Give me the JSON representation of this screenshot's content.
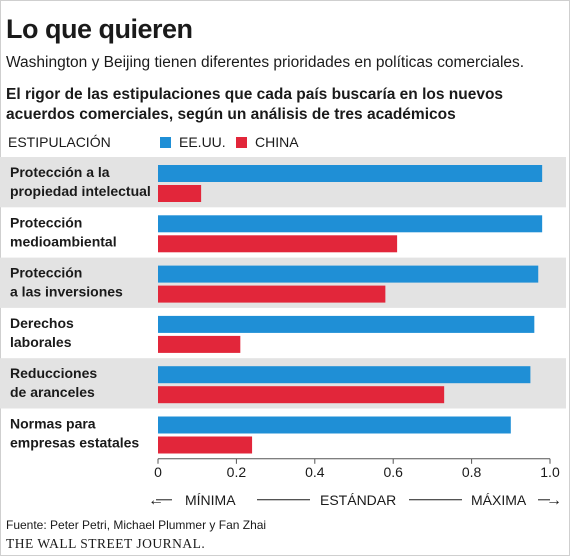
{
  "header": {
    "title": "Lo que quieren",
    "subtitle": "Washington y Beijing tienen diferentes prioridades en políticas comerciales.",
    "chart_title": "El rigor de las estipulaciones que cada país buscaría en los nuevos acuerdos comerciales, según un análisis de tres académicos"
  },
  "legend": {
    "category_header": "ESTIPULACIÓN",
    "items": [
      {
        "label": "EE.UU.",
        "color": "#1f8fd6"
      },
      {
        "label": "CHINA",
        "color": "#e2263a"
      }
    ]
  },
  "scale": {
    "left": "MÍNIMA",
    "middle": "ESTÁNDAR",
    "right": "MÁXIMA",
    "left_arrow": "←",
    "right_arrow": "→"
  },
  "footer": {
    "source": "Fuente: Peter Petri, Michael Plummer y Fan Zhai",
    "masthead": "THE WALL STREET JOURNAL."
  },
  "chart_data": {
    "type": "bar",
    "orientation": "horizontal",
    "categories": [
      [
        "Protección a la",
        "propiedad intelectual"
      ],
      [
        "Protección",
        "medioambiental"
      ],
      [
        "Protección",
        "a las inversiones"
      ],
      [
        "Derechos",
        "laborales"
      ],
      [
        "Reducciones",
        "de aranceles"
      ],
      [
        "Normas para",
        "empresas estatales"
      ]
    ],
    "series": [
      {
        "name": "EE.UU.",
        "color": "#1f8fd6",
        "values": [
          0.98,
          0.98,
          0.97,
          0.96,
          0.95,
          0.9
        ]
      },
      {
        "name": "CHINA",
        "color": "#e2263a",
        "values": [
          0.11,
          0.61,
          0.58,
          0.21,
          0.73,
          0.24
        ]
      }
    ],
    "xlim": [
      0,
      1.0
    ],
    "xticks": [
      0,
      0.2,
      0.4,
      0.6,
      0.8,
      1.0
    ],
    "xtick_labels": [
      "0",
      "0.2",
      "0.4",
      "0.6",
      "0.8",
      "1.0"
    ],
    "row_band_color": "#e3e3e3",
    "grid": false,
    "legend_position": "top"
  }
}
